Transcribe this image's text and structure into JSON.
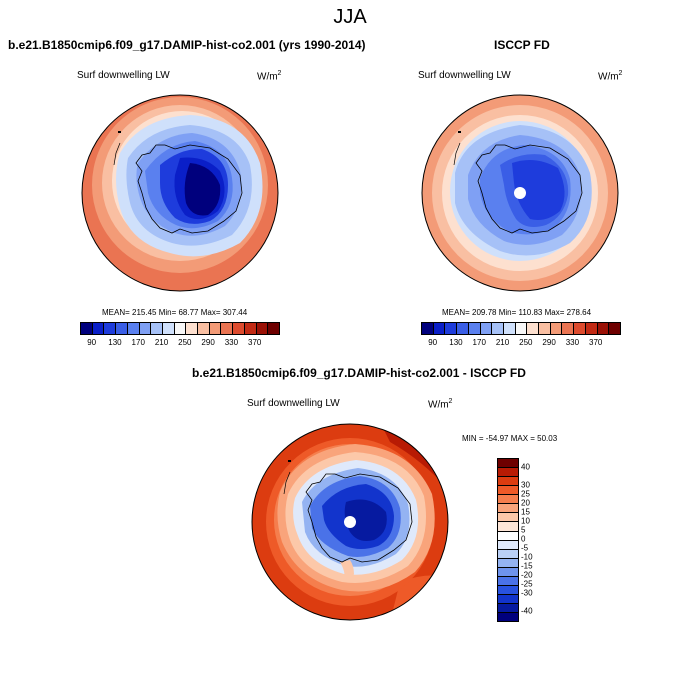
{
  "season": "JJA",
  "panels": {
    "model": {
      "title": "b.e21.B1850cmip6.f09_g17.DAMIP-hist-co2.001 (yrs 1990-2014)",
      "variable": "Surf downwelling LW",
      "units_base": "W/m",
      "units_exp": "2",
      "stats": "MEAN= 215.45  Min=  68.77  Max= 307.44"
    },
    "obs": {
      "title": "ISCCP FD",
      "variable": "Surf downwelling LW",
      "units_base": "W/m",
      "units_exp": "2",
      "stats": "MEAN= 209.78  Min= 110.83  Max= 278.64"
    },
    "diff": {
      "title": "b.e21.B1850cmip6.f09_g17.DAMIP-hist-co2.001 - ISCCP FD",
      "variable": "Surf downwelling LW",
      "units_base": "W/m",
      "units_exp": "2",
      "stats": "MIN = -54.97 MAX =  50.03"
    }
  },
  "colorbar_abs": {
    "colors": [
      "#00007d",
      "#0a1fc8",
      "#1e3cdc",
      "#3a5ee6",
      "#5a80ef",
      "#7fa0f4",
      "#a6c1f7",
      "#cfe0fb",
      "#f7f7f7",
      "#fde0cf",
      "#f9bfa2",
      "#f39b77",
      "#ea7452",
      "#dd4b2e",
      "#c22a14",
      "#9b1106",
      "#6e0000"
    ],
    "labels": [
      "90",
      "130",
      "170",
      "210",
      "250",
      "290",
      "330",
      "370"
    ]
  },
  "colorbar_diff": {
    "colors": [
      "#6e0000",
      "#b81b04",
      "#dc3c10",
      "#ee5a28",
      "#f57e4d",
      "#f9a47b",
      "#fcc8a9",
      "#fde6d7",
      "#ffffff",
      "#dfe9fb",
      "#bad0f6",
      "#94b3f2",
      "#6e93ed",
      "#4a72e8",
      "#2852df",
      "#1234cc",
      "#061aa0",
      "#00007d"
    ],
    "labels": [
      "40",
      "30",
      "25",
      "20",
      "15",
      "10",
      "5",
      "0",
      "-5",
      "-10",
      "-15",
      "-20",
      "-25",
      "-30",
      "-40"
    ]
  }
}
